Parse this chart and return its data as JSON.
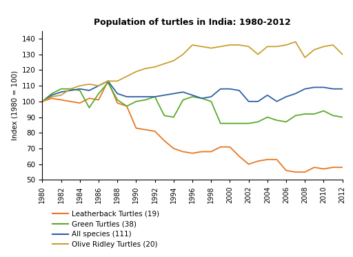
{
  "title": "Population of turtles in India: 1980-2012",
  "ylabel": "Index (1980 = 100)",
  "ylim": [
    50,
    145
  ],
  "yticks": [
    50,
    60,
    70,
    80,
    90,
    100,
    110,
    120,
    130,
    140
  ],
  "years": [
    1980,
    1981,
    1982,
    1983,
    1984,
    1985,
    1986,
    1987,
    1988,
    1989,
    1990,
    1991,
    1992,
    1993,
    1994,
    1995,
    1996,
    1997,
    1998,
    1999,
    2000,
    2001,
    2002,
    2003,
    2004,
    2005,
    2006,
    2007,
    2008,
    2009,
    2010,
    2011,
    2012
  ],
  "leatherback": [
    100,
    102,
    101,
    100,
    99,
    102,
    101,
    113,
    99,
    97,
    83,
    82,
    81,
    75,
    70,
    68,
    67,
    68,
    68,
    71,
    71,
    65,
    60,
    62,
    63,
    63,
    56,
    55,
    55,
    58,
    57,
    58,
    58
  ],
  "green": [
    100,
    105,
    108,
    108,
    107,
    96,
    105,
    112,
    101,
    97,
    100,
    101,
    103,
    91,
    90,
    101,
    103,
    102,
    100,
    86,
    86,
    86,
    86,
    87,
    90,
    88,
    87,
    91,
    92,
    92,
    94,
    91,
    90
  ],
  "all_species": [
    100,
    104,
    106,
    107,
    108,
    107,
    110,
    113,
    105,
    103,
    103,
    103,
    103,
    104,
    105,
    106,
    104,
    102,
    103,
    108,
    108,
    107,
    100,
    100,
    104,
    100,
    103,
    105,
    108,
    109,
    109,
    108,
    108
  ],
  "olive_ridley": [
    100,
    103,
    104,
    108,
    110,
    111,
    110,
    113,
    113,
    116,
    119,
    121,
    122,
    124,
    126,
    130,
    136,
    135,
    134,
    135,
    136,
    136,
    135,
    130,
    135,
    135,
    136,
    138,
    128,
    133,
    135,
    136,
    130
  ],
  "colors": {
    "leatherback": "#E87722",
    "green": "#5aaa2a",
    "all_species": "#2e5fa3",
    "olive_ridley": "#c8a030"
  },
  "legend": [
    {
      "label": "Leatherback Turtles (19)",
      "color": "#E87722"
    },
    {
      "label": "Green Turtles (38)",
      "color": "#5aaa2a"
    },
    {
      "label": "All species (111)",
      "color": "#2e5fa3"
    },
    {
      "label": "Olive Ridley Turtles (20)",
      "color": "#c8a030"
    }
  ],
  "xtick_years": [
    1980,
    1982,
    1984,
    1986,
    1988,
    1990,
    1992,
    1994,
    1996,
    1998,
    2000,
    2002,
    2004,
    2006,
    2008,
    2010,
    2012
  ]
}
